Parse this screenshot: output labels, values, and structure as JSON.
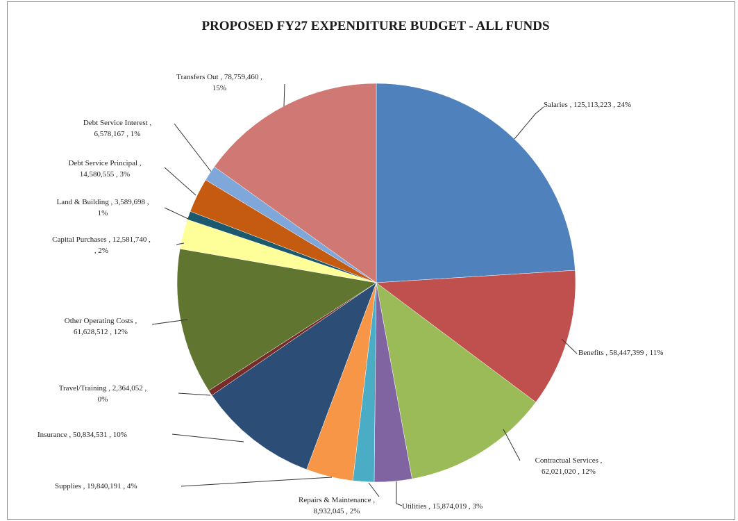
{
  "chart_data": {
    "type": "pie",
    "title": "PROPOSED FY27 EXPENDITURE BUDGET - ALL FUNDS",
    "start_angle_deg": 0,
    "direction": "clockwise",
    "slices": [
      {
        "name": "Salaries",
        "value": 125113223,
        "label_lines": [
          "Salaries , 125,113,223 , 24%"
        ],
        "color": "#4F81BD"
      },
      {
        "name": "Benefits",
        "value": 58447399,
        "label_lines": [
          "Benefits , 58,447,399 , 11%"
        ],
        "color": "#C0504D"
      },
      {
        "name": "Contractual Services",
        "value": 62021020,
        "label_lines": [
          "Contractual Services ,",
          "62,021,020 , 12%"
        ],
        "color": "#9BBB59"
      },
      {
        "name": "Utilities",
        "value": 15874019,
        "label_lines": [
          "Utilities , 15,874,019 , 3%"
        ],
        "color": "#8064A2"
      },
      {
        "name": "Repairs & Maintenance",
        "value": 8932045,
        "label_lines": [
          "Repairs & Maintenance ,",
          "8,932,045 , 2%"
        ],
        "color": "#4BACC6"
      },
      {
        "name": "Supplies",
        "value": 19840191,
        "label_lines": [
          "Supplies , 19,840,191 , 4%"
        ],
        "color": "#F79646"
      },
      {
        "name": "Insurance",
        "value": 50834531,
        "label_lines": [
          "Insurance , 50,834,531 , 10%"
        ],
        "color": "#2C4D75"
      },
      {
        "name": "Travel/Training",
        "value": 2364052,
        "label_lines": [
          "Travel/Training , 2,364,052 ,",
          "0%"
        ],
        "color": "#772C2A"
      },
      {
        "name": "Other Operating Costs",
        "value": 61628512,
        "label_lines": [
          "Other Operating Costs ,",
          "61,628,512 , 12%"
        ],
        "color": "#5F7530"
      },
      {
        "name": "Capital Purchases",
        "value": 12581740,
        "label_lines": [
          "Capital Purchases , 12,581,740 ,",
          ", 2%"
        ],
        "color": "#FFFF99"
      },
      {
        "name": "Land & Building",
        "value": 3589698,
        "label_lines": [
          "Land & Building , 3,589,698 ,",
          "1%"
        ],
        "color": "#1B5A6E"
      },
      {
        "name": "Debt Service Principal",
        "value": 14580555,
        "label_lines": [
          "Debt Service Principal ,",
          "14,580,555 , 3%"
        ],
        "color": "#C55A11"
      },
      {
        "name": "Debt Service Interest",
        "value": 6578167,
        "label_lines": [
          "Debt Service Interest ,",
          "6,578,167 , 1%"
        ],
        "color": "#7FA7D9"
      },
      {
        "name": "Transfers Out",
        "value": 78759460,
        "label_lines": [
          "Transfers Out , 78,759,460 ,",
          "15%"
        ],
        "color": "#D07874"
      }
    ]
  }
}
